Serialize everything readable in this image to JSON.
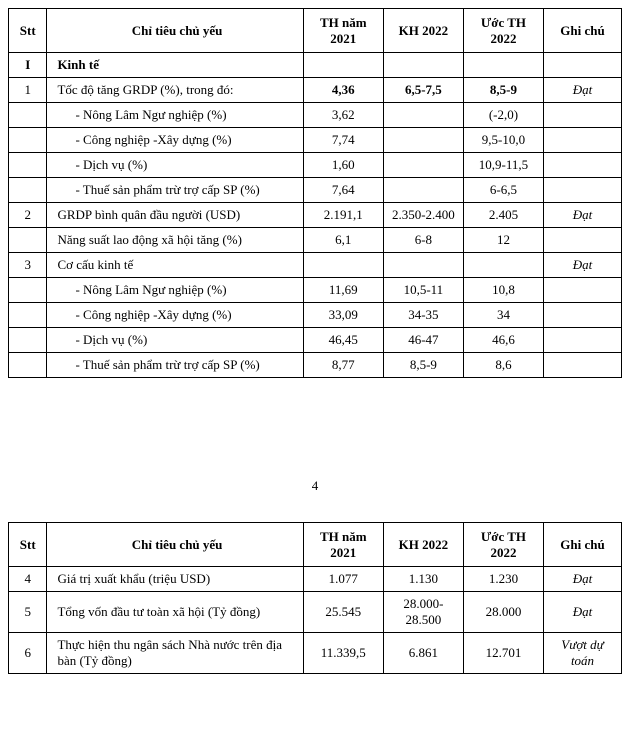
{
  "columns": {
    "stt": "Stt",
    "name": "Chỉ tiêu chủ yếu",
    "th": "TH năm 2021",
    "kh": "KH  2022",
    "uoc": "Ước TH 2022",
    "note": "Ghi chú"
  },
  "page_number": "4",
  "table1": [
    {
      "stt": "I",
      "name": "Kinh tế",
      "th": "",
      "kh": "",
      "uoc": "",
      "note": "",
      "bold": true
    },
    {
      "stt": "1",
      "name": "Tốc độ tăng GRDP (%), trong đó:",
      "th": "4,36",
      "kh": "6,5-7,5",
      "uoc": "8,5-9",
      "note": "Đạt",
      "bold_nums": true,
      "note_italic": true
    },
    {
      "stt": "",
      "name": "- Nông Lâm Ngư nghiệp (%)",
      "th": "3,62",
      "kh": "",
      "uoc": "(-2,0)",
      "note": "",
      "sub": true
    },
    {
      "stt": "",
      "name": "- Công nghiệp -Xây dựng (%)",
      "th": "7,74",
      "kh": "",
      "uoc": "9,5-10,0",
      "note": "",
      "sub": true
    },
    {
      "stt": "",
      "name": "- Dịch vụ (%)",
      "th": "1,60",
      "kh": "",
      "uoc": "10,9-11,5",
      "note": "",
      "sub": true
    },
    {
      "stt": "",
      "name": "- Thuế sản phẩm trừ trợ cấp SP (%)",
      "th": "7,64",
      "kh": "",
      "uoc": "6-6,5",
      "note": "",
      "sub": true
    },
    {
      "stt": "2",
      "name": "GRDP bình quân đầu người  (USD)",
      "th": "2.191,1",
      "kh": "2.350-2.400",
      "uoc": "2.405",
      "note": "Đạt",
      "note_italic": true
    },
    {
      "stt": "",
      "name": "Năng suất lao động xã hội tăng (%)",
      "th": "6,1",
      "kh": "6-8",
      "uoc": "12",
      "note": ""
    },
    {
      "stt": "3",
      "name": "Cơ cấu kinh tế",
      "th": "",
      "kh": "",
      "uoc": "",
      "note": "Đạt",
      "note_italic": true
    },
    {
      "stt": "",
      "name": "- Nông Lâm Ngư nghiệp (%)",
      "th": "11,69",
      "kh": "10,5-11",
      "uoc": "10,8",
      "note": "",
      "sub": true
    },
    {
      "stt": "",
      "name": "- Công nghiệp -Xây dựng (%)",
      "th": "33,09",
      "kh": "34-35",
      "uoc": "34",
      "note": "",
      "sub": true
    },
    {
      "stt": "",
      "name": "- Dịch vụ (%)",
      "th": "46,45",
      "kh": "46-47",
      "uoc": "46,6",
      "note": "",
      "sub": true
    },
    {
      "stt": "",
      "name": "- Thuế sản phẩm trừ trợ cấp SP (%)",
      "th": "8,77",
      "kh": "8,5-9",
      "uoc": "8,6",
      "note": "",
      "sub": true
    }
  ],
  "table2": [
    {
      "stt": "4",
      "name": "Giá trị xuất khẩu (triệu USD)",
      "th": "1.077",
      "kh": "1.130",
      "uoc": "1.230",
      "note": "Đạt",
      "note_italic": true
    },
    {
      "stt": "5",
      "name": "Tổng vốn đầu tư toàn xã hội\n(Tỷ đồng)",
      "th": "25.545",
      "kh": "28.000-28.500",
      "uoc": "28.000",
      "note": "Đạt",
      "note_italic": true
    },
    {
      "stt": "6",
      "name": "Thực hiện thu ngân sách Nhà nước trên địa bàn (Tỷ đồng)",
      "th": "11.339,5",
      "kh": "6.861",
      "uoc": "12.701",
      "note": "Vượt dự toán",
      "note_italic": true
    }
  ]
}
